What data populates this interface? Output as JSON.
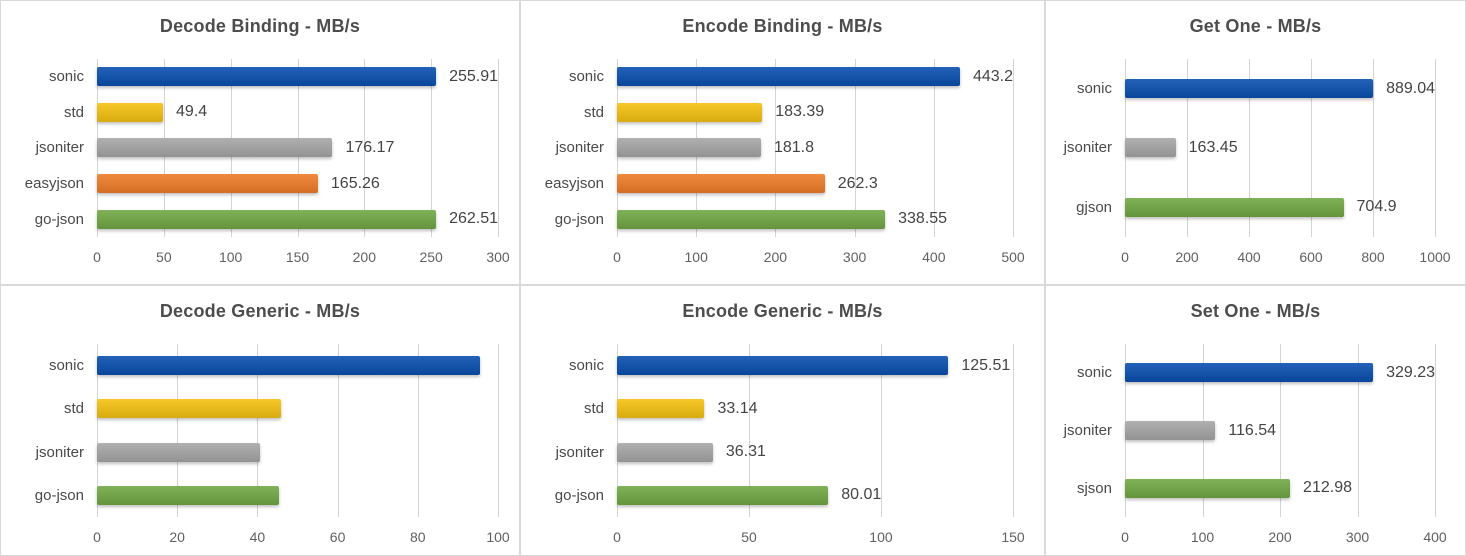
{
  "colors": {
    "blue": "#0a50b0",
    "yellow": "#f5c211",
    "gray": "#a7a7a7",
    "orange": "#ef7d28",
    "green": "#72a845",
    "gridline": "#d4d4d4",
    "title_text": "#4d4d4d",
    "category_text": "#4a4a4a",
    "tick_text": "#616161",
    "value_text": "#444444",
    "panel_divider": "#d9d9d9"
  },
  "chart_data": [
    {
      "type": "bar",
      "orientation": "horizontal",
      "title": "Decode Binding - MB/s",
      "categories": [
        "sonic",
        "std",
        "jsoniter",
        "easyjson",
        "go-json"
      ],
      "values": [
        255.91,
        49.4,
        176.17,
        165.26,
        262.51
      ],
      "value_labels": [
        "255.91",
        "49.4",
        "176.17",
        "165.26",
        "262.51"
      ],
      "bar_colors": [
        "blue",
        "yellow",
        "gray",
        "orange",
        "green"
      ],
      "xlim": [
        0,
        300
      ],
      "xticks": [
        0,
        50,
        100,
        150,
        200,
        250,
        300
      ],
      "grid": true,
      "legend": "none"
    },
    {
      "type": "bar",
      "orientation": "horizontal",
      "title": "Encode Binding - MB/s",
      "categories": [
        "sonic",
        "std",
        "jsoniter",
        "easyjson",
        "go-json"
      ],
      "values": [
        443.2,
        183.39,
        181.8,
        262.3,
        338.55
      ],
      "value_labels": [
        "443.2",
        "183.39",
        "181.8",
        "262.3",
        "338.55"
      ],
      "bar_colors": [
        "blue",
        "yellow",
        "gray",
        "orange",
        "green"
      ],
      "xlim": [
        0,
        500
      ],
      "xticks": [
        0,
        100,
        200,
        300,
        400,
        500
      ],
      "grid": true,
      "legend": "none"
    },
    {
      "type": "bar",
      "orientation": "horizontal",
      "title": "Get One - MB/s",
      "categories": [
        "sonic",
        "jsoniter",
        "gjson"
      ],
      "values": [
        889.04,
        163.45,
        704.9
      ],
      "value_labels": [
        "889.04",
        "163.45",
        "704.9"
      ],
      "bar_colors": [
        "blue",
        "gray",
        "green"
      ],
      "xlim": [
        0,
        1000
      ],
      "xticks": [
        0,
        200,
        400,
        600,
        800,
        1000
      ],
      "grid": true,
      "legend": "none"
    },
    {
      "type": "bar",
      "orientation": "horizontal",
      "title": "Decode Generic - MB/s",
      "categories": [
        "sonic",
        "std",
        "jsoniter",
        "go-json"
      ],
      "values": [
        95.5,
        46,
        40.6,
        45.5
      ],
      "value_labels": [
        "",
        "",
        "",
        ""
      ],
      "bar_colors": [
        "blue",
        "yellow",
        "gray",
        "green"
      ],
      "xlim": [
        0,
        100
      ],
      "xticks": [
        0,
        20,
        40,
        60,
        80,
        100
      ],
      "grid": true,
      "legend": "none"
    },
    {
      "type": "bar",
      "orientation": "horizontal",
      "title": "Encode Generic - MB/s",
      "categories": [
        "sonic",
        "std",
        "jsoniter",
        "go-json"
      ],
      "values": [
        125.51,
        33.14,
        36.31,
        80.01
      ],
      "value_labels": [
        "125.51",
        "33.14",
        "36.31",
        "80.01"
      ],
      "bar_colors": [
        "blue",
        "yellow",
        "gray",
        "green"
      ],
      "xlim": [
        0,
        150
      ],
      "xticks": [
        0,
        50,
        100,
        150
      ],
      "grid": true,
      "legend": "none"
    },
    {
      "type": "bar",
      "orientation": "horizontal",
      "title": "Set One - MB/s",
      "categories": [
        "sonic",
        "jsoniter",
        "sjson"
      ],
      "values": [
        329.23,
        116.54,
        212.98
      ],
      "value_labels": [
        "329.23",
        "116.54",
        "212.98"
      ],
      "bar_colors": [
        "blue",
        "gray",
        "green"
      ],
      "xlim": [
        0,
        400
      ],
      "xticks": [
        0,
        100,
        200,
        300,
        400
      ],
      "grid": true,
      "legend": "none"
    }
  ]
}
